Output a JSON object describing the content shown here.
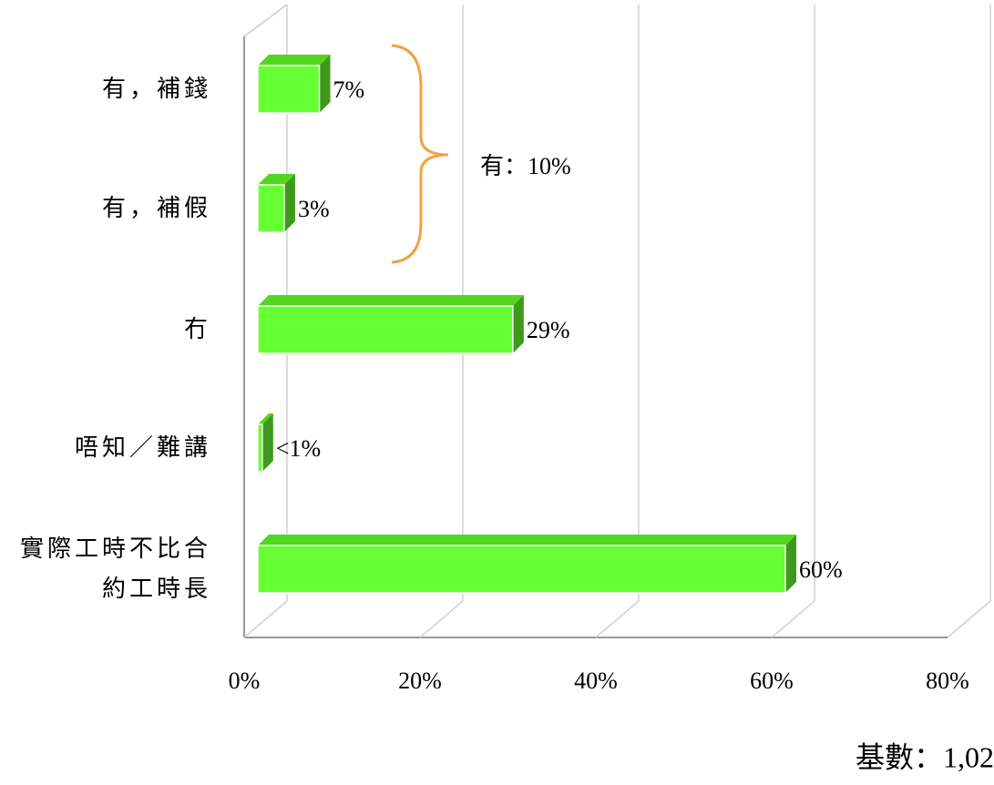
{
  "chart_data": {
    "type": "bar3d_horizontal",
    "categories": [
      "有，補錢",
      "有，補假",
      "冇",
      "唔知／難講",
      "實際工時不比合約工時長"
    ],
    "values": [
      7,
      3,
      29,
      0.5,
      60
    ],
    "value_labels": [
      "7%",
      "3%",
      "29%",
      "<1%",
      "60%"
    ],
    "color": "#66ff33",
    "xlim": [
      0,
      80
    ],
    "xticks": [
      {
        "value": 0,
        "label": "0%"
      },
      {
        "value": 20,
        "label": "20%"
      },
      {
        "value": 40,
        "label": "40%"
      },
      {
        "value": 60,
        "label": "60%"
      },
      {
        "value": 80,
        "label": "80%"
      }
    ],
    "grid": true,
    "annotations": [
      "有：10%"
    ],
    "footnote": "基數：1,02"
  }
}
